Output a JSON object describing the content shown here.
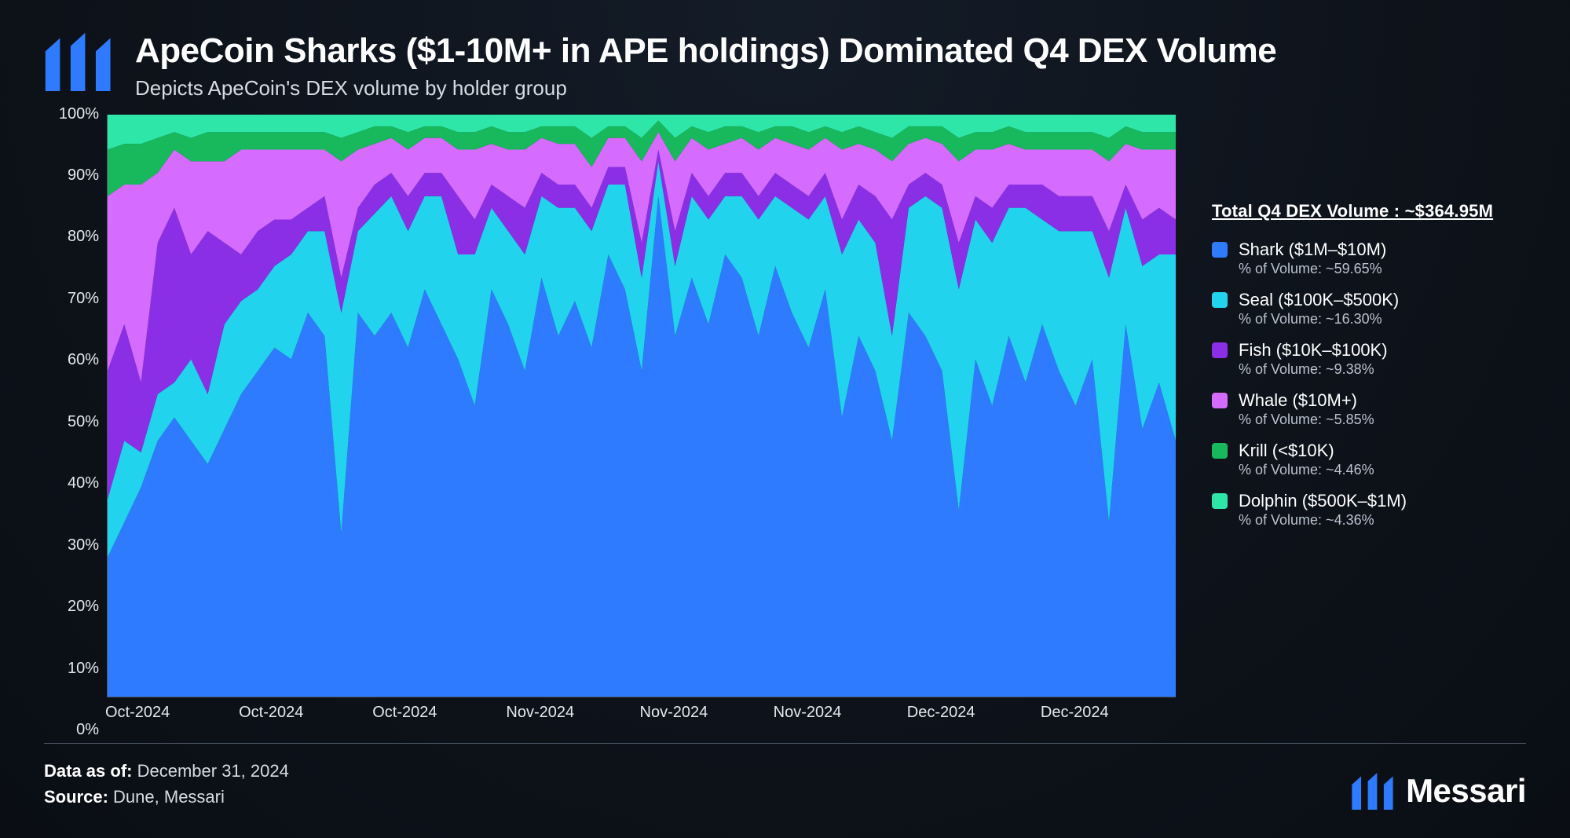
{
  "header": {
    "title": "ApeCoin Sharks ($1-10M+ in APE holdings) Dominated Q4 DEX Volume",
    "subtitle": "Depicts ApeCoin's DEX volume by holder group"
  },
  "chart": {
    "type": "stacked-area-100pct",
    "background_color": "#0e131b",
    "axis_color": "#4b5563",
    "tick_color": "#e4e8ee",
    "tick_fontsize": 20,
    "ylim": [
      0,
      100
    ],
    "ytick_step": 10,
    "yticks": [
      "0%",
      "10%",
      "20%",
      "30%",
      "40%",
      "50%",
      "60%",
      "70%",
      "80%",
      "90%",
      "100%"
    ],
    "xticks": [
      {
        "pos": 0.0,
        "label": "Oct-2024"
      },
      {
        "pos": 0.125,
        "label": "Oct-2024"
      },
      {
        "pos": 0.25,
        "label": "Oct-2024"
      },
      {
        "pos": 0.375,
        "label": "Nov-2024"
      },
      {
        "pos": 0.5,
        "label": "Nov-2024"
      },
      {
        "pos": 0.625,
        "label": "Nov-2024"
      },
      {
        "pos": 0.75,
        "label": "Dec-2024"
      },
      {
        "pos": 0.875,
        "label": "Dec-2024"
      }
    ],
    "series_order_bottom_to_top": [
      "shark",
      "seal",
      "fish",
      "whale",
      "krill",
      "dolphin"
    ],
    "series": {
      "shark": {
        "color": "#2e7bff"
      },
      "seal": {
        "color": "#22d3ee"
      },
      "fish": {
        "color": "#8b2fe6"
      },
      "whale": {
        "color": "#d66bff"
      },
      "krill": {
        "color": "#18b85c"
      },
      "dolphin": {
        "color": "#2ee6a8"
      }
    },
    "data": [
      {
        "shark": 24,
        "seal": 10,
        "fish": 22,
        "whale": 30,
        "krill": 8,
        "dolphin": 6
      },
      {
        "shark": 30,
        "seal": 14,
        "fish": 20,
        "whale": 24,
        "krill": 7,
        "dolphin": 5
      },
      {
        "shark": 36,
        "seal": 6,
        "fish": 12,
        "whale": 34,
        "krill": 7,
        "dolphin": 5
      },
      {
        "shark": 44,
        "seal": 8,
        "fish": 26,
        "whale": 12,
        "krill": 6,
        "dolphin": 4
      },
      {
        "shark": 48,
        "seal": 6,
        "fish": 30,
        "whale": 10,
        "krill": 3,
        "dolphin": 3
      },
      {
        "shark": 44,
        "seal": 14,
        "fish": 18,
        "whale": 16,
        "krill": 4,
        "dolphin": 4
      },
      {
        "shark": 40,
        "seal": 12,
        "fish": 28,
        "whale": 12,
        "krill": 5,
        "dolphin": 3
      },
      {
        "shark": 46,
        "seal": 18,
        "fish": 14,
        "whale": 14,
        "krill": 5,
        "dolphin": 3
      },
      {
        "shark": 52,
        "seal": 16,
        "fish": 8,
        "whale": 18,
        "krill": 3,
        "dolphin": 3
      },
      {
        "shark": 56,
        "seal": 14,
        "fish": 10,
        "whale": 14,
        "krill": 3,
        "dolphin": 3
      },
      {
        "shark": 60,
        "seal": 14,
        "fish": 8,
        "whale": 12,
        "krill": 3,
        "dolphin": 3
      },
      {
        "shark": 58,
        "seal": 18,
        "fish": 6,
        "whale": 12,
        "krill": 3,
        "dolphin": 3
      },
      {
        "shark": 66,
        "seal": 14,
        "fish": 4,
        "whale": 10,
        "krill": 3,
        "dolphin": 3
      },
      {
        "shark": 62,
        "seal": 18,
        "fish": 6,
        "whale": 8,
        "krill": 3,
        "dolphin": 3
      },
      {
        "shark": 28,
        "seal": 38,
        "fish": 6,
        "whale": 20,
        "krill": 4,
        "dolphin": 4
      },
      {
        "shark": 66,
        "seal": 14,
        "fish": 4,
        "whale": 10,
        "krill": 3,
        "dolphin": 3
      },
      {
        "shark": 62,
        "seal": 21,
        "fish": 5,
        "whale": 7,
        "krill": 3,
        "dolphin": 2
      },
      {
        "shark": 66,
        "seal": 20,
        "fish": 4,
        "whale": 6,
        "krill": 2,
        "dolphin": 2
      },
      {
        "shark": 60,
        "seal": 20,
        "fish": 6,
        "whale": 8,
        "krill": 3,
        "dolphin": 3
      },
      {
        "shark": 70,
        "seal": 16,
        "fish": 4,
        "whale": 6,
        "krill": 2,
        "dolphin": 2
      },
      {
        "shark": 64,
        "seal": 22,
        "fish": 4,
        "whale": 6,
        "krill": 2,
        "dolphin": 2
      },
      {
        "shark": 58,
        "seal": 18,
        "fish": 10,
        "whale": 8,
        "krill": 3,
        "dolphin": 3
      },
      {
        "shark": 50,
        "seal": 26,
        "fish": 6,
        "whale": 12,
        "krill": 3,
        "dolphin": 3
      },
      {
        "shark": 70,
        "seal": 14,
        "fish": 4,
        "whale": 7,
        "krill": 3,
        "dolphin": 2
      },
      {
        "shark": 64,
        "seal": 16,
        "fish": 6,
        "whale": 8,
        "krill": 3,
        "dolphin": 3
      },
      {
        "shark": 56,
        "seal": 20,
        "fish": 8,
        "whale": 10,
        "krill": 3,
        "dolphin": 3
      },
      {
        "shark": 72,
        "seal": 14,
        "fish": 4,
        "whale": 6,
        "krill": 2,
        "dolphin": 2
      },
      {
        "shark": 62,
        "seal": 22,
        "fish": 4,
        "whale": 7,
        "krill": 3,
        "dolphin": 2
      },
      {
        "shark": 68,
        "seal": 16,
        "fish": 4,
        "whale": 7,
        "krill": 3,
        "dolphin": 2
      },
      {
        "shark": 60,
        "seal": 20,
        "fish": 4,
        "whale": 7,
        "krill": 5,
        "dolphin": 4
      },
      {
        "shark": 76,
        "seal": 12,
        "fish": 3,
        "whale": 5,
        "krill": 2,
        "dolphin": 2
      },
      {
        "shark": 70,
        "seal": 18,
        "fish": 3,
        "whale": 5,
        "krill": 2,
        "dolphin": 2
      },
      {
        "shark": 56,
        "seal": 16,
        "fish": 6,
        "whale": 14,
        "krill": 4,
        "dolphin": 4
      },
      {
        "shark": 86,
        "seal": 6,
        "fish": 2,
        "whale": 3,
        "krill": 2,
        "dolphin": 1
      },
      {
        "shark": 62,
        "seal": 12,
        "fish": 6,
        "whale": 12,
        "krill": 4,
        "dolphin": 4
      },
      {
        "shark": 72,
        "seal": 14,
        "fish": 4,
        "whale": 6,
        "krill": 2,
        "dolphin": 2
      },
      {
        "shark": 64,
        "seal": 18,
        "fish": 4,
        "whale": 8,
        "krill": 3,
        "dolphin": 3
      },
      {
        "shark": 76,
        "seal": 10,
        "fish": 4,
        "whale": 5,
        "krill": 3,
        "dolphin": 2
      },
      {
        "shark": 72,
        "seal": 14,
        "fish": 4,
        "whale": 6,
        "krill": 2,
        "dolphin": 2
      },
      {
        "shark": 62,
        "seal": 20,
        "fish": 4,
        "whale": 8,
        "krill": 3,
        "dolphin": 3
      },
      {
        "shark": 74,
        "seal": 12,
        "fish": 4,
        "whale": 6,
        "krill": 2,
        "dolphin": 2
      },
      {
        "shark": 66,
        "seal": 18,
        "fish": 4,
        "whale": 7,
        "krill": 3,
        "dolphin": 2
      },
      {
        "shark": 60,
        "seal": 22,
        "fish": 4,
        "whale": 8,
        "krill": 3,
        "dolphin": 3
      },
      {
        "shark": 70,
        "seal": 16,
        "fish": 4,
        "whale": 6,
        "krill": 2,
        "dolphin": 2
      },
      {
        "shark": 48,
        "seal": 28,
        "fish": 6,
        "whale": 12,
        "krill": 3,
        "dolphin": 3
      },
      {
        "shark": 62,
        "seal": 20,
        "fish": 6,
        "whale": 7,
        "krill": 3,
        "dolphin": 2
      },
      {
        "shark": 56,
        "seal": 22,
        "fish": 8,
        "whale": 8,
        "krill": 3,
        "dolphin": 3
      },
      {
        "shark": 44,
        "seal": 18,
        "fish": 20,
        "whale": 10,
        "krill": 4,
        "dolphin": 4
      },
      {
        "shark": 66,
        "seal": 18,
        "fish": 4,
        "whale": 7,
        "krill": 3,
        "dolphin": 2
      },
      {
        "shark": 62,
        "seal": 24,
        "fish": 4,
        "whale": 6,
        "krill": 2,
        "dolphin": 2
      },
      {
        "shark": 56,
        "seal": 28,
        "fish": 4,
        "whale": 7,
        "krill": 3,
        "dolphin": 2
      },
      {
        "shark": 32,
        "seal": 38,
        "fish": 8,
        "whale": 14,
        "krill": 4,
        "dolphin": 4
      },
      {
        "shark": 58,
        "seal": 24,
        "fish": 4,
        "whale": 8,
        "krill": 3,
        "dolphin": 3
      },
      {
        "shark": 50,
        "seal": 28,
        "fish": 6,
        "whale": 10,
        "krill": 3,
        "dolphin": 3
      },
      {
        "shark": 62,
        "seal": 22,
        "fish": 4,
        "whale": 7,
        "krill": 3,
        "dolphin": 2
      },
      {
        "shark": 54,
        "seal": 30,
        "fish": 4,
        "whale": 6,
        "krill": 3,
        "dolphin": 3
      },
      {
        "shark": 64,
        "seal": 18,
        "fish": 6,
        "whale": 6,
        "krill": 3,
        "dolphin": 3
      },
      {
        "shark": 56,
        "seal": 24,
        "fish": 6,
        "whale": 8,
        "krill": 3,
        "dolphin": 3
      },
      {
        "shark": 50,
        "seal": 30,
        "fish": 6,
        "whale": 8,
        "krill": 3,
        "dolphin": 3
      },
      {
        "shark": 58,
        "seal": 22,
        "fish": 6,
        "whale": 8,
        "krill": 3,
        "dolphin": 3
      },
      {
        "shark": 30,
        "seal": 42,
        "fish": 8,
        "whale": 12,
        "krill": 4,
        "dolphin": 4
      },
      {
        "shark": 64,
        "seal": 20,
        "fish": 4,
        "whale": 7,
        "krill": 3,
        "dolphin": 2
      },
      {
        "shark": 46,
        "seal": 28,
        "fish": 8,
        "whale": 12,
        "krill": 3,
        "dolphin": 3
      },
      {
        "shark": 54,
        "seal": 22,
        "fish": 8,
        "whale": 10,
        "krill": 3,
        "dolphin": 3
      },
      {
        "shark": 44,
        "seal": 32,
        "fish": 6,
        "whale": 12,
        "krill": 3,
        "dolphin": 3
      }
    ]
  },
  "legend": {
    "title": "Total Q4 DEX Volume : ~$364.95M",
    "items": [
      {
        "key": "shark",
        "label": "Shark ($1M–$10M)",
        "sub": "% of Volume: ~59.65%"
      },
      {
        "key": "seal",
        "label": "Seal ($100K–$500K)",
        "sub": "% of Volume: ~16.30%"
      },
      {
        "key": "fish",
        "label": "Fish ($10K–$100K)",
        "sub": "% of Volume: ~9.38%"
      },
      {
        "key": "whale",
        "label": "Whale ($10M+)",
        "sub": "% of Volume: ~5.85%"
      },
      {
        "key": "krill",
        "label": "Krill (<$10K)",
        "sub": "% of Volume: ~4.46%"
      },
      {
        "key": "dolphin",
        "label": "Dolphin ($500K–$1M)",
        "sub": "% of Volume: ~4.36%"
      }
    ]
  },
  "footer": {
    "data_as_of_label": "Data as of:",
    "data_as_of_value": "December 31, 2024",
    "source_label": "Source:",
    "source_value": "Dune, Messari",
    "brand": "Messari",
    "brand_color": "#2e7bff"
  }
}
